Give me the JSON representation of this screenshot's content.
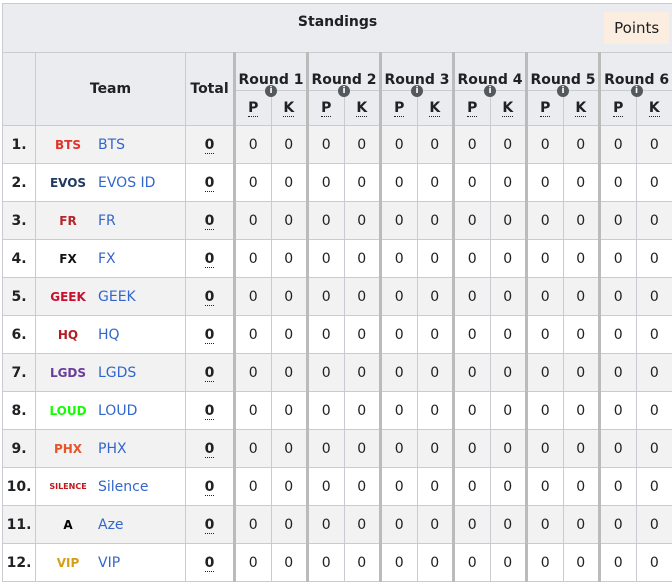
{
  "header": {
    "title": "Standings",
    "points_button": "Points",
    "team": "Team",
    "total": "Total",
    "p": "P",
    "k": "K",
    "rounds": [
      "Round 1",
      "Round 2",
      "Round 3",
      "Round 4",
      "Round 5",
      "Round 6"
    ]
  },
  "rows": [
    {
      "rank": "1.",
      "team": "BTS",
      "total": "0",
      "logo_color": "#e0332c",
      "logo": "BTS"
    },
    {
      "rank": "2.",
      "team": "EVOS ID",
      "total": "0",
      "logo_color": "#1e3a5f",
      "logo": "EVOS"
    },
    {
      "rank": "3.",
      "team": "FR",
      "total": "0",
      "logo_color": "#b3262a",
      "logo": "FR"
    },
    {
      "rank": "4.",
      "team": "FX",
      "total": "0",
      "logo_color": "#111111",
      "logo": "FX"
    },
    {
      "rank": "5.",
      "team": "GEEK",
      "total": "0",
      "logo_color": "#c8102e",
      "logo": "GEEK"
    },
    {
      "rank": "6.",
      "team": "HQ",
      "total": "0",
      "logo_color": "#b11f24",
      "logo": "HQ"
    },
    {
      "rank": "7.",
      "team": "LGDS",
      "total": "0",
      "logo_color": "#6a3d9a",
      "logo": "LGDS"
    },
    {
      "rank": "8.",
      "team": "LOUD",
      "total": "0",
      "logo_color": "#13ff00",
      "logo": "LOUD"
    },
    {
      "rank": "9.",
      "team": "PHX",
      "total": "0",
      "logo_color": "#e6552a",
      "logo": "PHX"
    },
    {
      "rank": "10.",
      "team": "Silence",
      "total": "0",
      "logo_color": "#c0151b",
      "logo": "SILENCE"
    },
    {
      "rank": "11.",
      "team": "Aze",
      "total": "0",
      "logo_color": "#000000",
      "logo": "A"
    },
    {
      "rank": "12.",
      "team": "VIP",
      "total": "0",
      "logo_color": "#d4a017",
      "logo": "VIP"
    }
  ],
  "round_values": [
    "0",
    "0",
    "0",
    "0",
    "0",
    "0",
    "0",
    "0",
    "0",
    "0",
    "0",
    "0"
  ]
}
